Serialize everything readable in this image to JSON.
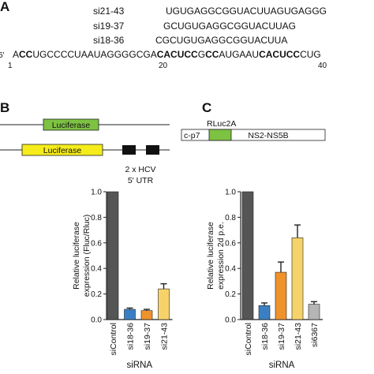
{
  "panel_a": {
    "label": "A",
    "sirnas": [
      {
        "name": "si21-43",
        "sequence": "UGUGAGGCGGUACUUAGUGAGGG"
      },
      {
        "name": "si19-37",
        "sequence": "GCUGUGAGGCGGUACUUAG"
      },
      {
        "name": "si18-36",
        "sequence": "CGCUGUGAGGCGGUACUUA"
      }
    ],
    "prime": "5'",
    "segments": [
      {
        "text": "A",
        "bold": false
      },
      {
        "text": "CC",
        "bold": true
      },
      {
        "text": "UGCCCCUAAUAGGGGCGA",
        "bold": false
      },
      {
        "text": "CACUCC",
        "bold": true
      },
      {
        "text": "G",
        "bold": false
      },
      {
        "text": "CC",
        "bold": true
      },
      {
        "text": "AUGAAU",
        "bold": false
      },
      {
        "text": "CACUCC",
        "bold": true
      },
      {
        "text": "CUG",
        "bold": false
      }
    ],
    "positions": [
      1,
      20,
      40
    ]
  },
  "panel_b": {
    "label": "B",
    "gene1": "Luciferase",
    "gene2": "Luciferase",
    "utr_label": [
      "2 x HCV",
      "5' UTR"
    ]
  },
  "panel_c": {
    "label": "C",
    "gene": "RLuc2A",
    "left": "c-p7",
    "right": "NS2-NS5B"
  },
  "chart_data": [
    {
      "type": "bar",
      "ylabel": [
        "Relative luciferase",
        "expression (Fluc/Rluc)"
      ],
      "xlabel": "siRNA",
      "categories": [
        "siControl",
        "si18-36",
        "si19-37",
        "si21-43"
      ],
      "values": [
        1.0,
        0.08,
        0.07,
        0.24
      ],
      "errors": [
        0,
        0.01,
        0.01,
        0.04
      ],
      "colors": [
        "#555555",
        "#3a7fc4",
        "#f0922b",
        "#f6d36a"
      ],
      "ylim": [
        0,
        1.0
      ],
      "yticks": [
        {
          "value": 0,
          "label": "0.0"
        },
        {
          "value": 0.2,
          "label": "0.2"
        },
        {
          "value": 0.4,
          "label": "0.4"
        },
        {
          "value": 0.6,
          "label": "0.6"
        },
        {
          "value": 0.8,
          "label": "0.8"
        },
        {
          "value": 1.0,
          "label": "1.0"
        }
      ]
    },
    {
      "type": "bar",
      "ylabel": [
        "Relative luciferase",
        "expression 2d p.e."
      ],
      "xlabel": "siRNA",
      "categories": [
        "siControl",
        "si18-36",
        "si19-37",
        "si21-43",
        "si6367"
      ],
      "values": [
        1.0,
        0.11,
        0.37,
        0.64,
        0.12
      ],
      "errors": [
        0,
        0.02,
        0.08,
        0.1,
        0.02
      ],
      "colors": [
        "#555555",
        "#3a7fc4",
        "#f0922b",
        "#f6d36a",
        "#b5b5b5"
      ],
      "ylim": [
        0,
        1.0
      ],
      "yticks": [
        {
          "value": 0,
          "label": "0.0"
        },
        {
          "value": 0.2,
          "label": "0.2"
        },
        {
          "value": 0.4,
          "label": "0.4"
        },
        {
          "value": 0.6,
          "label": "0.6"
        },
        {
          "value": 0.8,
          "label": "0.8"
        },
        {
          "value": 1.0,
          "label": "1.0"
        }
      ]
    }
  ]
}
